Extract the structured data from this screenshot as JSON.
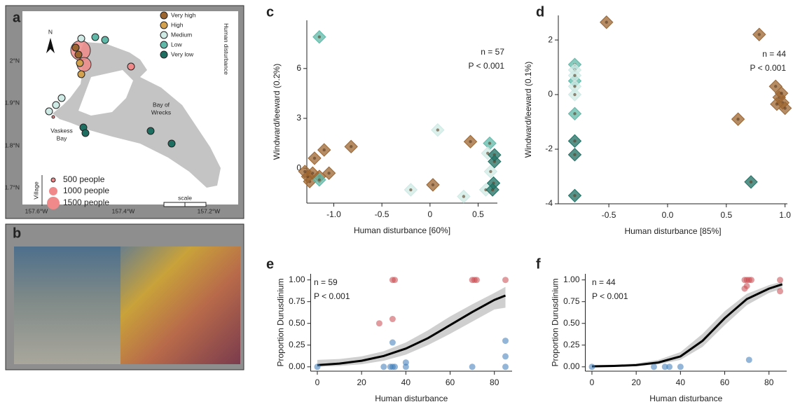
{
  "chart_data": [
    {
      "type": "scatter",
      "panel": "c",
      "marker": "diamond",
      "x_label": "Human disturbance  [60%]",
      "y_label": "Windward/leeward   (0.2%)",
      "annotations": [
        "n = 57",
        "P < 0.001"
      ],
      "xlim": [
        -1.28,
        0.7
      ],
      "ylim": [
        -2.1,
        8.9
      ],
      "xticks": [
        {
          "value": -1,
          "label": "-1.0"
        },
        -0.5,
        0,
        0.5
      ],
      "yticks": [
        0,
        3,
        6
      ],
      "series": [
        {
          "color": "#9c6530",
          "x": [
            -1.25,
            -1.27,
            -1.22,
            -1.2,
            -1.1,
            -0.82,
            -1.15,
            -1.05,
            0.03,
            0.42,
            -1.3
          ],
          "values": [
            -0.8,
            -0.5,
            -0.3,
            0.6,
            1.1,
            1.3,
            -0.5,
            -0.3,
            -1.0,
            1.6,
            -0.2
          ]
        },
        {
          "color": "#5fb8a8",
          "x": [
            -1.15,
            0.62,
            -1.15
          ],
          "values": [
            7.9,
            1.5,
            -0.7
          ]
        },
        {
          "color": "#cfe9e4",
          "x": [
            0.08,
            -0.2,
            0.35,
            0.58,
            0.6,
            0.63
          ],
          "values": [
            2.3,
            -1.3,
            -1.7,
            -1.3,
            0.9,
            -0.2
          ]
        },
        {
          "color": "#1f6e62",
          "x": [
            0.67,
            0.67,
            0.66,
            0.65
          ],
          "values": [
            0.8,
            0.4,
            -0.9,
            -1.3
          ]
        }
      ]
    },
    {
      "type": "scatter",
      "panel": "d",
      "marker": "diamond",
      "x_label": "Human disturbance  [85%]",
      "y_label": "Windward/leeward  (0.1%)",
      "annotations": [
        "n = 44",
        "P < 0.001"
      ],
      "xlim": [
        -0.93,
        1.02
      ],
      "ylim": [
        -4.0,
        2.9
      ],
      "xticks": [
        -0.5,
        {
          "value": 0,
          "label": "0.0"
        },
        0.5,
        {
          "value": 1,
          "label": "1.0"
        }
      ],
      "yticks": [
        -4,
        -2,
        0,
        2
      ],
      "series": [
        {
          "color": "#9c6530",
          "x": [
            -0.52,
            0.78,
            0.92,
            0.95,
            0.98,
            1.0,
            0.93,
            0.97,
            0.6
          ],
          "values": [
            2.65,
            2.2,
            0.3,
            -0.1,
            -0.3,
            -0.5,
            -0.35,
            0.05,
            -0.9
          ]
        },
        {
          "color": "#5fb8a8",
          "x": [
            -0.79,
            -0.79,
            -0.79
          ],
          "values": [
            1.1,
            0.5,
            -0.7
          ]
        },
        {
          "color": "#cfe9e4",
          "x": [
            -0.79,
            -0.79,
            -0.79,
            -0.79
          ],
          "values": [
            0.9,
            0.7,
            0.3,
            0.0
          ]
        },
        {
          "color": "#1f6e62",
          "x": [
            -0.79,
            -0.79,
            -0.79,
            0.71
          ],
          "values": [
            -1.7,
            -2.2,
            -3.7,
            -3.2
          ]
        }
      ]
    },
    {
      "type": "scatter",
      "panel": "e",
      "marker": "circle",
      "x_label": "Human disturbance",
      "y_label": "Proportion Durusdinium",
      "annotations": [
        "n = 59",
        "P < 0.001"
      ],
      "xlim": [
        -3,
        88
      ],
      "ylim": [
        -0.05,
        1.07
      ],
      "xticks": [
        0,
        20,
        40,
        60,
        80
      ],
      "yticks": [
        {
          "value": 0,
          "label": "0.00"
        },
        0.25,
        {
          "value": 0.5,
          "label": "0.50"
        },
        0.75,
        {
          "value": 1,
          "label": "1.00"
        }
      ],
      "series": [
        {
          "color": "#c9484e",
          "x": [
            34,
            35,
            70,
            71,
            72,
            85,
            28,
            34
          ],
          "values": [
            1,
            1,
            1,
            1,
            1,
            1,
            0.5,
            0.55
          ]
        },
        {
          "color": "#3a7ab8",
          "x": [
            0,
            30,
            33,
            34,
            35,
            40,
            70,
            85,
            34,
            85,
            85,
            40
          ],
          "values": [
            0,
            0,
            0,
            0,
            0,
            0,
            0,
            0,
            0.28,
            0.3,
            0.12,
            0.05
          ]
        }
      ],
      "fit": {
        "x": [
          0,
          10,
          20,
          30,
          40,
          50,
          60,
          70,
          80,
          85
        ],
        "values": [
          0.02,
          0.038,
          0.07,
          0.125,
          0.21,
          0.33,
          0.48,
          0.63,
          0.77,
          0.82
        ],
        "low": [
          0,
          0.01,
          0.03,
          0.07,
          0.14,
          0.25,
          0.38,
          0.52,
          0.66,
          0.68
        ],
        "high": [
          0.08,
          0.09,
          0.12,
          0.18,
          0.28,
          0.42,
          0.58,
          0.72,
          0.85,
          0.92
        ]
      }
    },
    {
      "type": "scatter",
      "panel": "f",
      "marker": "circle",
      "x_label": "Human disturbance",
      "y_label": "Proportion Durusdinium",
      "annotations": [
        "n = 44",
        "P < 0.001"
      ],
      "xlim": [
        -3,
        88
      ],
      "ylim": [
        -0.05,
        1.07
      ],
      "xticks": [
        0,
        20,
        40,
        60,
        80
      ],
      "yticks": [
        {
          "value": 0,
          "label": "0.00"
        },
        0.25,
        {
          "value": 0.5,
          "label": "0.50"
        },
        0.75,
        {
          "value": 1,
          "label": "1.00"
        }
      ],
      "series": [
        {
          "color": "#c9484e",
          "x": [
            69,
            70,
            71,
            72,
            85,
            69,
            70,
            85
          ],
          "values": [
            1,
            1,
            1,
            1,
            1,
            0.9,
            0.93,
            0.87
          ]
        },
        {
          "color": "#3a7ab8",
          "x": [
            0,
            28,
            33,
            35,
            40,
            71
          ],
          "values": [
            0,
            0,
            0,
            0,
            0,
            0.08
          ]
        }
      ],
      "fit": {
        "x": [
          0,
          10,
          20,
          30,
          40,
          50,
          60,
          70,
          80,
          86
        ],
        "values": [
          0.005,
          0.01,
          0.02,
          0.05,
          0.12,
          0.3,
          0.56,
          0.78,
          0.9,
          0.95
        ],
        "low": [
          0,
          0,
          0.005,
          0.03,
          0.08,
          0.23,
          0.48,
          0.71,
          0.85,
          0.9
        ],
        "high": [
          0.02,
          0.025,
          0.04,
          0.08,
          0.17,
          0.38,
          0.64,
          0.84,
          0.94,
          0.98
        ]
      }
    }
  ],
  "map": {
    "panel": "a",
    "north": "N",
    "lat_ticks": [
      "2°N",
      "1.9°N",
      "1.8°N",
      "1.7°N"
    ],
    "lon_ticks": [
      "157.6°W",
      "157.4°W",
      "157.2°W"
    ],
    "legend": {
      "title": "Human disturbance",
      "items": [
        "Very high",
        "High",
        "Medium",
        "Low",
        "Very low"
      ]
    },
    "village": {
      "title": "Village",
      "items": [
        "500 people",
        "1000 people",
        "1500 people"
      ]
    },
    "places": [
      "Bay of",
      "Wrecks",
      "Vaskess",
      "Bay"
    ],
    "scale": "scale"
  },
  "photos": {
    "panel": "b"
  }
}
